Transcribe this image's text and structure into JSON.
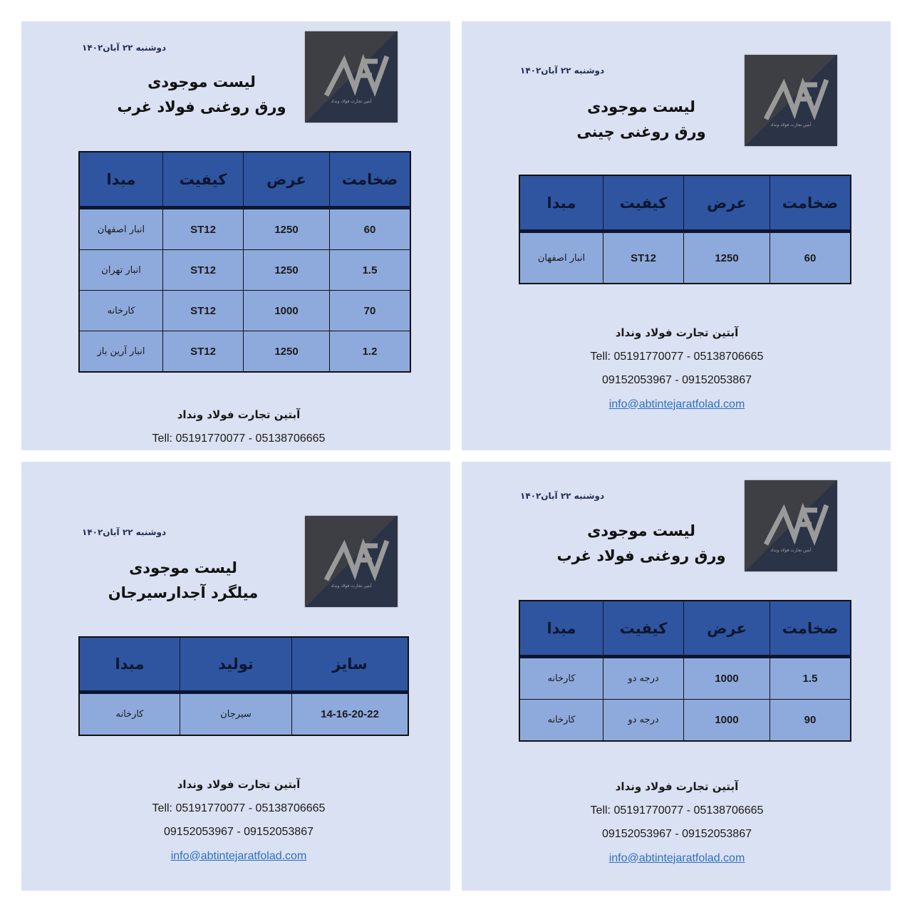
{
  "colors": {
    "panel_bg": "#dae1f2",
    "header_bg": "#2f55a0",
    "cell_bg": "#8eaadc",
    "link": "#2f6fc0"
  },
  "logo": {
    "icon": "mev-logo",
    "text": "آبتین تجارت فولاد ونداد"
  },
  "panels": [
    {
      "date": "دوشنبه ۲۲ آبان۱۴۰۲",
      "title_line1": "لیست موجودی",
      "title_line2": "ورق روغنی فولاد غرب",
      "headers": [
        "ضخامت",
        "عرض",
        "کیفیت",
        "مبدا"
      ],
      "rows": [
        [
          "60",
          "1250",
          "ST12",
          "انبار اصفهان"
        ],
        [
          "1.5",
          "1250",
          "ST12",
          "انبار تهران"
        ],
        [
          "70",
          "1000",
          "ST12",
          "کارخانه"
        ],
        [
          "1.2",
          "1250",
          "ST12",
          "انبار آرین باز"
        ]
      ],
      "footer": {
        "company": "آبتین تجارت فولاد ونداد",
        "tel": "Tell: 05191770077 - 05138706665"
      }
    },
    {
      "date": "دوشنبه ۲۲ آبان۱۴۰۲",
      "title_line1": "لیست موجودی",
      "title_line2": "ورق روغنی چینی",
      "headers": [
        "ضخامت",
        "عرض",
        "کیفیت",
        "مبدا"
      ],
      "rows": [
        [
          "60",
          "1250",
          "ST12",
          "انبار اصفهان"
        ]
      ],
      "footer": {
        "company": "آبتین تجارت فولاد ونداد",
        "tel": "Tell: 05191770077 - 05138706665",
        "mobile": "09152053967 - 09152053867",
        "email": "info@abtintejaratfolad.com"
      }
    },
    {
      "date": "دوشنبه ۲۲ آبان۱۴۰۲",
      "title_line1": "لیست موجودی",
      "title_line2": "میلگرد آجدارسیرجان",
      "headers": [
        "سایز",
        "تولید",
        "مبدا"
      ],
      "rows": [
        [
          "14-16-20-22",
          "سیرجان",
          "کارخانه"
        ]
      ],
      "footer": {
        "company": "آبتین تجارت فولاد ونداد",
        "tel": "Tell: 05191770077 - 05138706665",
        "mobile": "09152053967 - 09152053867",
        "email": "info@abtintejaratfolad.com"
      }
    },
    {
      "date": "دوشنبه ۲۲ آبان۱۴۰۲",
      "title_line1": "لیست موجودی",
      "title_line2": "ورق روغنی فولاد غرب",
      "headers": [
        "ضخامت",
        "عرض",
        "کیفیت",
        "مبدا"
      ],
      "rows": [
        [
          "1.5",
          "1000",
          "درجه دو",
          "کارخانه"
        ],
        [
          "90",
          "1000",
          "درجه دو",
          "کارخانه"
        ]
      ],
      "footer": {
        "company": "آبتین تجارت فولاد ونداد",
        "tel": "Tell: 05191770077 - 05138706665",
        "mobile": "09152053967 - 09152053867",
        "email": "info@abtintejaratfolad.com"
      }
    }
  ]
}
